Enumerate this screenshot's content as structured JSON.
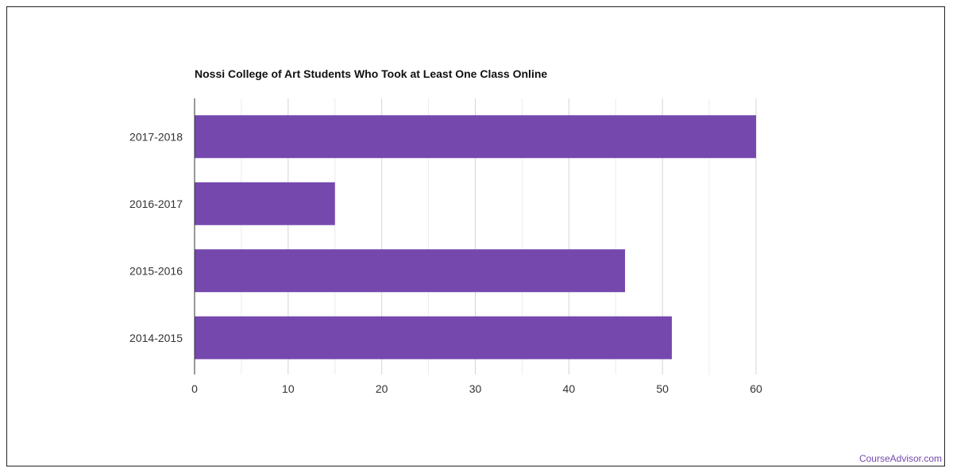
{
  "chart_data": {
    "type": "bar",
    "orientation": "horizontal",
    "title": "Nossi College of Art Students Who Took at Least One Class Online",
    "categories": [
      "2017-2018",
      "2016-2017",
      "2015-2016",
      "2014-2015"
    ],
    "values": [
      60,
      15,
      46,
      51
    ],
    "xlim": [
      0,
      60
    ],
    "x_ticks": [
      0,
      10,
      20,
      30,
      40,
      50,
      60
    ],
    "grid": true,
    "bar_color": "#7548ae",
    "xlabel": "",
    "ylabel": ""
  },
  "watermark": "CourseAdvisor.com",
  "colors": {
    "bar": "#7548ae",
    "watermark": "#7548ae",
    "grid": "#dddddd"
  }
}
